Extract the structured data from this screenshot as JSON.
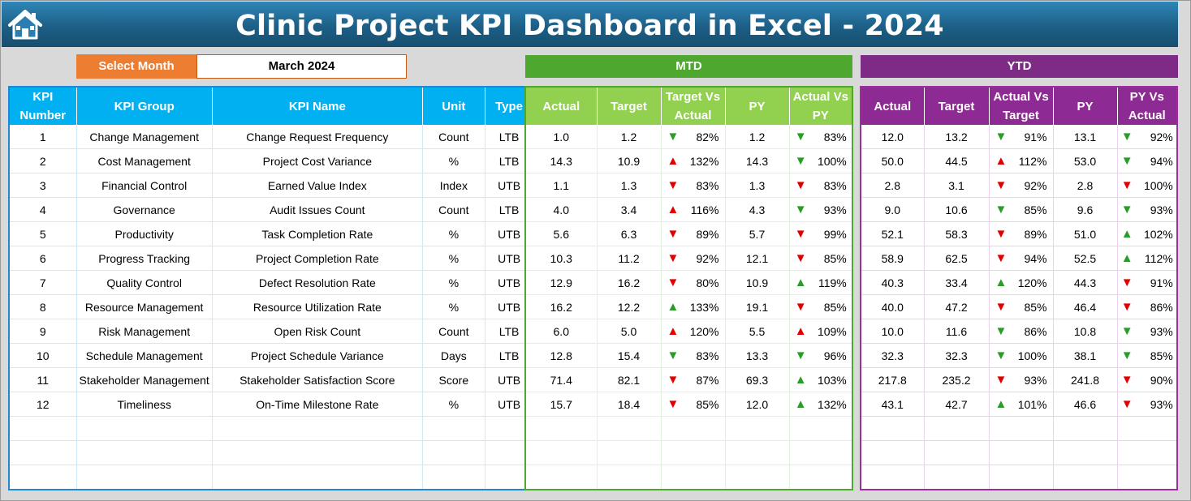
{
  "title": "Clinic Project KPI Dashboard in Excel - 2024",
  "selector": {
    "label": "Select Month",
    "value": "March 2024"
  },
  "bands": {
    "mtd": "MTD",
    "ytd": "YTD"
  },
  "left_headers": [
    "KPI Number",
    "KPI Group",
    "KPI Name",
    "Unit",
    "Type"
  ],
  "mtd_headers": [
    "Actual",
    "Target",
    "Target Vs Actual",
    "PY",
    "Actual Vs PY"
  ],
  "ytd_headers": [
    "Actual",
    "Target",
    "Actual Vs Target",
    "PY",
    "PY Vs Actual"
  ],
  "colors": {
    "up_bad": "#e00000",
    "down_good": "#2a9c28",
    "mtd": "#92d050",
    "ytd": "#8e2a93",
    "kpi": "#00b0f0",
    "select": "#ed7d31"
  },
  "rows": [
    {
      "num": "1",
      "group": "Change Management",
      "name": "Change Request Frequency",
      "unit": "Count",
      "type": "LTB",
      "mtd": {
        "actual": "1.0",
        "target": "1.2",
        "tva": "82%",
        "tva_dir": "down-green",
        "py": "1.2",
        "avp": "83%",
        "avp_dir": "down-green"
      },
      "ytd": {
        "actual": "12.0",
        "target": "13.2",
        "avt": "91%",
        "avt_dir": "down-green",
        "py": "13.1",
        "pva": "92%",
        "pva_dir": "down-green"
      }
    },
    {
      "num": "2",
      "group": "Cost Management",
      "name": "Project Cost Variance",
      "unit": "%",
      "type": "LTB",
      "mtd": {
        "actual": "14.3",
        "target": "10.9",
        "tva": "132%",
        "tva_dir": "up-red",
        "py": "14.3",
        "avp": "100%",
        "avp_dir": "down-green"
      },
      "ytd": {
        "actual": "50.0",
        "target": "44.5",
        "avt": "112%",
        "avt_dir": "up-red",
        "py": "53.0",
        "pva": "94%",
        "pva_dir": "down-green"
      }
    },
    {
      "num": "3",
      "group": "Financial Control",
      "name": "Earned Value Index",
      "unit": "Index",
      "type": "UTB",
      "mtd": {
        "actual": "1.1",
        "target": "1.3",
        "tva": "83%",
        "tva_dir": "down-red",
        "py": "1.3",
        "avp": "83%",
        "avp_dir": "down-red"
      },
      "ytd": {
        "actual": "2.8",
        "target": "3.1",
        "avt": "92%",
        "avt_dir": "down-red",
        "py": "2.8",
        "pva": "100%",
        "pva_dir": "down-red"
      }
    },
    {
      "num": "4",
      "group": "Governance",
      "name": "Audit Issues Count",
      "unit": "Count",
      "type": "LTB",
      "mtd": {
        "actual": "4.0",
        "target": "3.4",
        "tva": "116%",
        "tva_dir": "up-red",
        "py": "4.3",
        "avp": "93%",
        "avp_dir": "down-green"
      },
      "ytd": {
        "actual": "9.0",
        "target": "10.6",
        "avt": "85%",
        "avt_dir": "down-green",
        "py": "9.6",
        "pva": "93%",
        "pva_dir": "down-green"
      }
    },
    {
      "num": "5",
      "group": "Productivity",
      "name": "Task Completion Rate",
      "unit": "%",
      "type": "UTB",
      "mtd": {
        "actual": "5.6",
        "target": "6.3",
        "tva": "89%",
        "tva_dir": "down-red",
        "py": "5.7",
        "avp": "99%",
        "avp_dir": "down-red"
      },
      "ytd": {
        "actual": "52.1",
        "target": "58.3",
        "avt": "89%",
        "avt_dir": "down-red",
        "py": "51.0",
        "pva": "102%",
        "pva_dir": "up-green"
      }
    },
    {
      "num": "6",
      "group": "Progress Tracking",
      "name": "Project Completion Rate",
      "unit": "%",
      "type": "UTB",
      "mtd": {
        "actual": "10.3",
        "target": "11.2",
        "tva": "92%",
        "tva_dir": "down-red",
        "py": "12.1",
        "avp": "85%",
        "avp_dir": "down-red"
      },
      "ytd": {
        "actual": "58.9",
        "target": "62.5",
        "avt": "94%",
        "avt_dir": "down-red",
        "py": "52.5",
        "pva": "112%",
        "pva_dir": "up-green"
      }
    },
    {
      "num": "7",
      "group": "Quality Control",
      "name": "Defect Resolution Rate",
      "unit": "%",
      "type": "UTB",
      "mtd": {
        "actual": "12.9",
        "target": "16.2",
        "tva": "80%",
        "tva_dir": "down-red",
        "py": "10.9",
        "avp": "119%",
        "avp_dir": "up-green"
      },
      "ytd": {
        "actual": "40.3",
        "target": "33.4",
        "avt": "120%",
        "avt_dir": "up-green",
        "py": "44.3",
        "pva": "91%",
        "pva_dir": "down-red"
      }
    },
    {
      "num": "8",
      "group": "Resource Management",
      "name": "Resource Utilization Rate",
      "unit": "%",
      "type": "UTB",
      "mtd": {
        "actual": "16.2",
        "target": "12.2",
        "tva": "133%",
        "tva_dir": "up-green",
        "py": "19.1",
        "avp": "85%",
        "avp_dir": "down-red"
      },
      "ytd": {
        "actual": "40.0",
        "target": "47.2",
        "avt": "85%",
        "avt_dir": "down-red",
        "py": "46.4",
        "pva": "86%",
        "pva_dir": "down-red"
      }
    },
    {
      "num": "9",
      "group": "Risk Management",
      "name": "Open Risk Count",
      "unit": "Count",
      "type": "LTB",
      "mtd": {
        "actual": "6.0",
        "target": "5.0",
        "tva": "120%",
        "tva_dir": "up-red",
        "py": "5.5",
        "avp": "109%",
        "avp_dir": "up-red"
      },
      "ytd": {
        "actual": "10.0",
        "target": "11.6",
        "avt": "86%",
        "avt_dir": "down-green",
        "py": "10.8",
        "pva": "93%",
        "pva_dir": "down-green"
      }
    },
    {
      "num": "10",
      "group": "Schedule Management",
      "name": "Project Schedule Variance",
      "unit": "Days",
      "type": "LTB",
      "mtd": {
        "actual": "12.8",
        "target": "15.4",
        "tva": "83%",
        "tva_dir": "down-green",
        "py": "13.3",
        "avp": "96%",
        "avp_dir": "down-green"
      },
      "ytd": {
        "actual": "32.3",
        "target": "32.3",
        "avt": "100%",
        "avt_dir": "down-green",
        "py": "38.1",
        "pva": "85%",
        "pva_dir": "down-green"
      }
    },
    {
      "num": "11",
      "group": "Stakeholder Management",
      "name": "Stakeholder Satisfaction Score",
      "unit": "Score",
      "type": "UTB",
      "mtd": {
        "actual": "71.4",
        "target": "82.1",
        "tva": "87%",
        "tva_dir": "down-red",
        "py": "69.3",
        "avp": "103%",
        "avp_dir": "up-green"
      },
      "ytd": {
        "actual": "217.8",
        "target": "235.2",
        "avt": "93%",
        "avt_dir": "down-red",
        "py": "241.8",
        "pva": "90%",
        "pva_dir": "down-red"
      }
    },
    {
      "num": "12",
      "group": "Timeliness",
      "name": "On-Time Milestone Rate",
      "unit": "%",
      "type": "UTB",
      "mtd": {
        "actual": "15.7",
        "target": "18.4",
        "tva": "85%",
        "tva_dir": "down-red",
        "py": "12.0",
        "avp": "132%",
        "avp_dir": "up-green"
      },
      "ytd": {
        "actual": "43.1",
        "target": "42.7",
        "avt": "101%",
        "avt_dir": "up-green",
        "py": "46.6",
        "pva": "93%",
        "pva_dir": "down-red"
      }
    }
  ]
}
